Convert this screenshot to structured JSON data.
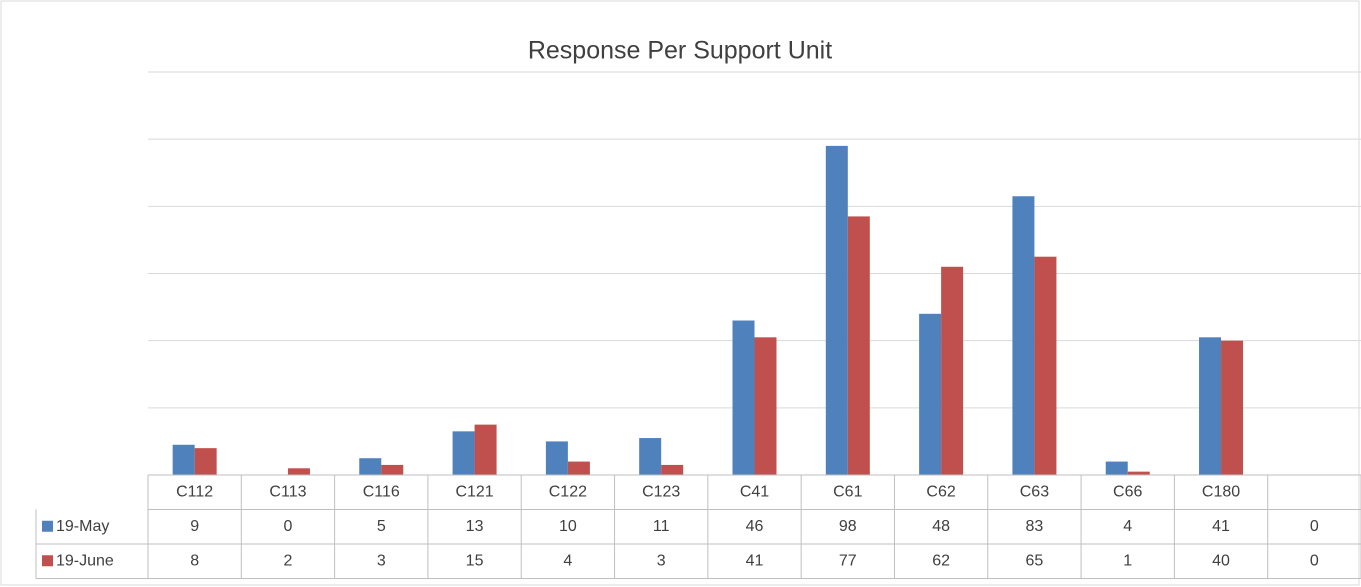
{
  "chart_data": {
    "type": "bar",
    "title": "Response Per Support Unit",
    "categories": [
      "C112",
      "C113",
      "C116",
      "C121",
      "C122",
      "C123",
      "C41",
      "C61",
      "C62",
      "C63",
      "C66",
      "C180",
      null
    ],
    "series": [
      {
        "name": "19-May",
        "color": "#4f81bd",
        "values": [
          9,
          0,
          5,
          13,
          10,
          11,
          46,
          98,
          48,
          83,
          4,
          41,
          0
        ]
      },
      {
        "name": "19-June",
        "color": "#c0504d",
        "values": [
          8,
          2,
          3,
          15,
          4,
          3,
          41,
          77,
          62,
          65,
          1,
          40,
          0
        ]
      }
    ],
    "ylim": [
      0,
      120
    ],
    "yticks": [
      0,
      20,
      40,
      60,
      80,
      100,
      120
    ],
    "grid": true
  }
}
